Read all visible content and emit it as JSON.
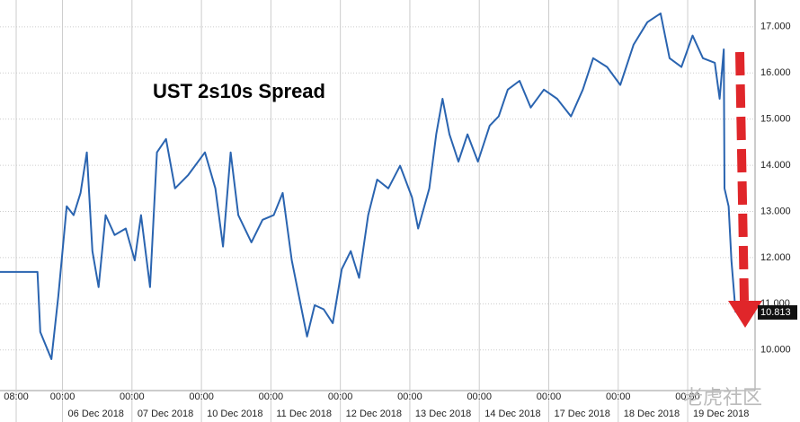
{
  "chart_data": {
    "type": "line",
    "title": "UST 2s10s Spread",
    "series": [
      {
        "name": "UST 2s10s Spread",
        "color": "#2a64b0",
        "x": [
          -0.9,
          -0.36,
          -0.32,
          -0.16,
          -0.06,
          0.06,
          0.16,
          0.26,
          0.35,
          0.43,
          0.52,
          0.62,
          0.75,
          0.91,
          1.04,
          1.13,
          1.26,
          1.36,
          1.49,
          1.62,
          1.81,
          2.05,
          2.2,
          2.31,
          2.42,
          2.53,
          2.72,
          2.88,
          3.04,
          3.17,
          3.3,
          3.43,
          3.52,
          3.63,
          3.76,
          3.89,
          4.02,
          4.15,
          4.27,
          4.4,
          4.53,
          4.69,
          4.86,
          5.03,
          5.12,
          5.28,
          5.38,
          5.47,
          5.57,
          5.7,
          5.83,
          5.98,
          6.15,
          6.28,
          6.41,
          6.58,
          6.74,
          6.93,
          7.12,
          7.32,
          7.49,
          7.64,
          7.84,
          8.03,
          8.22,
          8.42,
          8.61,
          8.74,
          8.91,
          9.07,
          9.22,
          9.39,
          9.46,
          9.52,
          9.53,
          9.59,
          9.63,
          9.69
        ],
        "values": [
          11.69,
          11.69,
          10.39,
          9.8,
          11.17,
          13.11,
          12.92,
          13.4,
          14.28,
          12.14,
          11.36,
          12.92,
          12.49,
          12.63,
          11.94,
          12.92,
          11.36,
          14.28,
          14.57,
          13.5,
          13.79,
          14.28,
          13.5,
          12.24,
          14.28,
          12.92,
          12.33,
          12.82,
          12.92,
          13.4,
          11.94,
          10.97,
          10.29,
          10.97,
          10.88,
          10.58,
          11.75,
          12.14,
          11.56,
          12.92,
          13.69,
          13.5,
          13.99,
          13.31,
          12.63,
          13.5,
          14.67,
          15.44,
          14.67,
          14.08,
          14.67,
          14.08,
          14.86,
          15.06,
          15.64,
          15.83,
          15.25,
          15.64,
          15.44,
          15.06,
          15.64,
          16.32,
          16.13,
          15.74,
          16.61,
          17.1,
          17.29,
          16.32,
          16.13,
          16.81,
          16.32,
          16.22,
          15.44,
          16.51,
          13.5,
          13.11,
          11.94,
          10.81
        ]
      }
    ],
    "last_value": 10.813,
    "xlim": [
      -0.9,
      9.97
    ],
    "ylim": [
      9.12,
      17.58
    ],
    "yticks": [
      {
        "value": 10,
        "label": "10.000"
      },
      {
        "value": 11,
        "label": "11.000"
      },
      {
        "value": 12,
        "label": "12.000"
      },
      {
        "value": 13,
        "label": "13.000"
      },
      {
        "value": 14,
        "label": "14.000"
      },
      {
        "value": 15,
        "label": "15.000"
      },
      {
        "value": 16,
        "label": "16.000"
      },
      {
        "value": 17,
        "label": "17.000"
      }
    ],
    "xticks": [
      {
        "value": -0.667,
        "label": "08:00"
      },
      {
        "value": 0,
        "label": "00:00"
      },
      {
        "value": 1,
        "label": "00:00"
      },
      {
        "value": 2,
        "label": "00:00"
      },
      {
        "value": 3,
        "label": "00:00"
      },
      {
        "value": 4,
        "label": "00:00"
      },
      {
        "value": 5,
        "label": "00:00"
      },
      {
        "value": 6,
        "label": "00:00"
      },
      {
        "value": 7,
        "label": "00:00"
      },
      {
        "value": 8,
        "label": "00:00"
      },
      {
        "value": 9,
        "label": "00:00"
      }
    ],
    "date_ticks": [
      {
        "value": 0,
        "label": "06 Dec 2018"
      },
      {
        "value": 1,
        "label": "07 Dec 2018"
      },
      {
        "value": 2,
        "label": "10 Dec 2018"
      },
      {
        "value": 3,
        "label": "11 Dec 2018"
      },
      {
        "value": 4,
        "label": "12 Dec 2018"
      },
      {
        "value": 5,
        "label": "13 Dec 2018"
      },
      {
        "value": 6,
        "label": "14 Dec 2018"
      },
      {
        "value": 7,
        "label": "17 Dec 2018"
      },
      {
        "value": 8,
        "label": "18 Dec 2018"
      },
      {
        "value": 9,
        "label": "19 Dec 2018"
      }
    ],
    "grid": true,
    "watermark": "老虎社区"
  }
}
